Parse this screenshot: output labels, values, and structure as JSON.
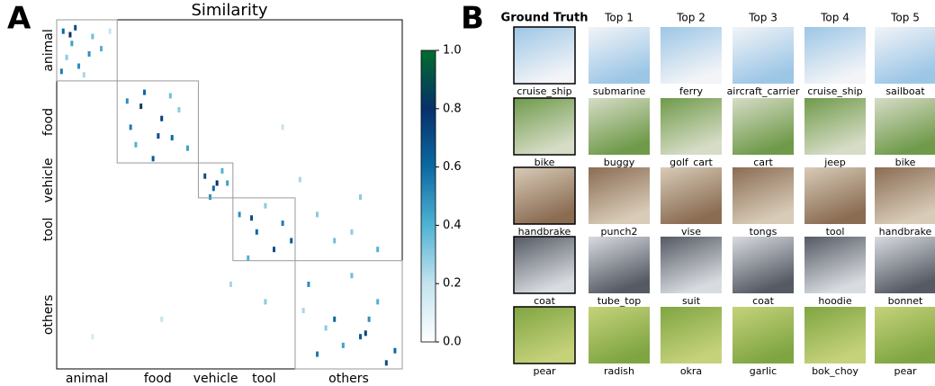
{
  "panel_labels": [
    "A",
    "B"
  ],
  "chart_data": {
    "type": "heatmap",
    "title": "Similarity",
    "xlim": [
      0,
      200
    ],
    "ylim": [
      0,
      200
    ],
    "blocks": [
      {
        "name": "animal",
        "start": 0,
        "end": 35
      },
      {
        "name": "food",
        "start": 35,
        "end": 82
      },
      {
        "name": "vehicle",
        "start": 82,
        "end": 102
      },
      {
        "name": "tool",
        "start": 102,
        "end": 138
      },
      {
        "name": "others",
        "start": 138,
        "end": 200
      }
    ],
    "cells": [
      [
        3,
        5,
        0.6
      ],
      [
        8,
        12,
        0.45
      ],
      [
        10,
        3,
        0.7
      ],
      [
        5,
        20,
        0.3
      ],
      [
        12,
        25,
        0.5
      ],
      [
        20,
        8,
        0.35
      ],
      [
        25,
        15,
        0.4
      ],
      [
        15,
        30,
        0.25
      ],
      [
        2,
        28,
        0.55
      ],
      [
        30,
        5,
        0.2
      ],
      [
        7,
        7,
        0.8
      ],
      [
        18,
        18,
        0.5
      ],
      [
        40,
        45,
        0.5
      ],
      [
        50,
        40,
        0.6
      ],
      [
        60,
        55,
        0.75
      ],
      [
        45,
        70,
        0.4
      ],
      [
        58,
        65,
        0.7
      ],
      [
        70,
        50,
        0.3
      ],
      [
        42,
        60,
        0.55
      ],
      [
        55,
        78,
        0.65
      ],
      [
        65,
        42,
        0.35
      ],
      [
        75,
        72,
        0.45
      ],
      [
        48,
        48,
        0.85
      ],
      [
        66,
        66,
        0.6
      ],
      [
        85,
        88,
        0.7
      ],
      [
        90,
        95,
        0.6
      ],
      [
        88,
        100,
        0.5
      ],
      [
        95,
        85,
        0.4
      ],
      [
        98,
        92,
        0.45
      ],
      [
        92,
        92,
        0.8
      ],
      [
        105,
        110,
        0.5
      ],
      [
        115,
        120,
        0.6
      ],
      [
        125,
        130,
        0.7
      ],
      [
        110,
        135,
        0.4
      ],
      [
        130,
        115,
        0.55
      ],
      [
        135,
        125,
        0.65
      ],
      [
        120,
        105,
        0.3
      ],
      [
        112,
        112,
        0.7
      ],
      [
        145,
        150,
        0.5
      ],
      [
        160,
        170,
        0.6
      ],
      [
        175,
        180,
        0.65
      ],
      [
        185,
        160,
        0.4
      ],
      [
        150,
        190,
        0.55
      ],
      [
        190,
        195,
        0.7
      ],
      [
        170,
        145,
        0.35
      ],
      [
        165,
        185,
        0.45
      ],
      [
        180,
        170,
        0.5
      ],
      [
        155,
        175,
        0.3
      ],
      [
        195,
        188,
        0.6
      ],
      [
        142,
        165,
        0.25
      ],
      [
        178,
        178,
        0.75
      ],
      [
        120,
        160,
        0.3
      ],
      [
        100,
        150,
        0.25
      ],
      [
        60,
        170,
        0.2
      ],
      [
        20,
        180,
        0.15
      ],
      [
        130,
        60,
        0.2
      ],
      [
        175,
        100,
        0.3
      ],
      [
        140,
        90,
        0.25
      ],
      [
        160,
        125,
        0.35
      ],
      [
        150,
        110,
        0.3
      ],
      [
        185,
        130,
        0.4
      ],
      [
        170,
        120,
        0.3
      ]
    ],
    "colorbar": {
      "lim": [
        0,
        1
      ],
      "ticks": [
        {
          "value": 0,
          "label": "0.0"
        },
        {
          "value": 0.2,
          "label": "0.2"
        },
        {
          "value": 0.4,
          "label": "0.4"
        },
        {
          "value": 0.6,
          "label": "0.6"
        },
        {
          "value": 0.8,
          "label": "0.8"
        },
        {
          "value": 1,
          "label": "1.0"
        }
      ],
      "colors": [
        "#ffffff",
        "#c4e3ef",
        "#4fb3d4",
        "#0b6aa3",
        "#08306b",
        "#006d2c"
      ]
    }
  },
  "retrieval": {
    "columns": [
      "Ground Truth",
      "Top 1",
      "Top 2",
      "Top 3",
      "Top 4",
      "Top 5"
    ],
    "rows": [
      [
        "cruise_ship",
        "submarine",
        "ferry",
        "aircraft_carrier",
        "cruise_ship",
        "sailboat"
      ],
      [
        "bike",
        "buggy",
        "golf_cart",
        "cart",
        "jeep",
        "bike"
      ],
      [
        "handbrake",
        "punch2",
        "vise",
        "tongs",
        "tool",
        "handbrake"
      ],
      [
        "coat",
        "tube_top",
        "suit",
        "coat",
        "hoodie",
        "bonnet"
      ],
      [
        "pear",
        "radish",
        "okra",
        "garlic",
        "bok_choy",
        "pear"
      ]
    ]
  }
}
